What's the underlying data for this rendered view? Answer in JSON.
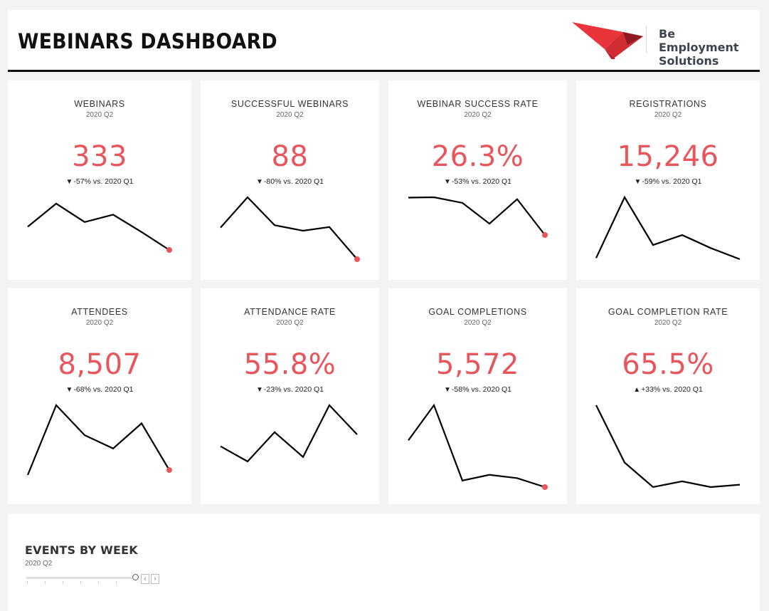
{
  "header": {
    "title": "WEBINARS DASHBOARD",
    "logo_line1": "Be Employment",
    "logo_line2": "Solutions",
    "logo_colors": [
      "#e8343a",
      "#c0242c",
      "#8e1a22"
    ]
  },
  "colors": {
    "accent": "#e8555b",
    "line": "#000000",
    "card_bg": "#ffffff",
    "page_bg": "#f3f3f3"
  },
  "cards": [
    {
      "title": "WEBINARS",
      "period": "2020 Q2",
      "value": "333",
      "direction": "down",
      "arrow": "▼",
      "delta": "-57% vs. 2020 Q1",
      "trend": [
        44,
        88,
        53,
        67,
        34,
        0
      ],
      "end_dot": true
    },
    {
      "title": "SUCCESSFUL WEBINARS",
      "period": "2020 Q2",
      "value": "88",
      "direction": "down",
      "arrow": "▼",
      "delta": "-80% vs. 2020 Q1",
      "trend": [
        51,
        100,
        55,
        46,
        52,
        0
      ],
      "end_dot": true
    },
    {
      "title": "WEBINAR SUCCESS RATE",
      "period": "2020 Q2",
      "value": "26.3%",
      "direction": "down",
      "arrow": "▼",
      "delta": "-53% vs. 2020 Q1",
      "trend": [
        99,
        100,
        85,
        30,
        95,
        0
      ],
      "end_dot": true
    },
    {
      "title": "REGISTRATIONS",
      "period": "2020 Q2",
      "value": "15,246",
      "direction": "down",
      "arrow": "▼",
      "delta": "-59% vs. 2020 Q1",
      "trend": [
        2,
        100,
        23,
        39,
        18,
        0
      ],
      "end_dot": false
    },
    {
      "title": "ATTENDEES",
      "period": "2020 Q2",
      "value": "8,507",
      "direction": "down",
      "arrow": "▼",
      "delta": "-68% vs. 2020 Q1",
      "trend": [
        0,
        100,
        57,
        38,
        74,
        7
      ],
      "end_dot": true
    },
    {
      "title": "ATTENDANCE RATE",
      "period": "2020 Q2",
      "value": "55.8%",
      "direction": "down",
      "arrow": "▼",
      "delta": "-23% vs. 2020 Q1",
      "trend": [
        27,
        0,
        52,
        8,
        100,
        48
      ],
      "end_dot": false
    },
    {
      "title": "GOAL COMPLETIONS",
      "period": "2020 Q2",
      "value": "5,572",
      "direction": "down",
      "arrow": "▼",
      "delta": "-58% vs. 2020 Q1",
      "trend": [
        57,
        100,
        8,
        15,
        11,
        0
      ],
      "end_dot": true
    },
    {
      "title": "GOAL COMPLETION RATE",
      "period": "2020 Q2",
      "value": "65.5%",
      "direction": "up",
      "arrow": "▲",
      "delta": "+33% vs. 2020 Q1",
      "trend": [
        100,
        30,
        0,
        7,
        0,
        3
      ],
      "end_dot": false
    }
  ],
  "events": {
    "title": "EVENTS BY WEEK",
    "period": "2020 Q2",
    "prev_icon": "chevron-left-icon",
    "next_icon": "chevron-right-icon",
    "prev_glyph": "‹",
    "next_glyph": "›"
  }
}
